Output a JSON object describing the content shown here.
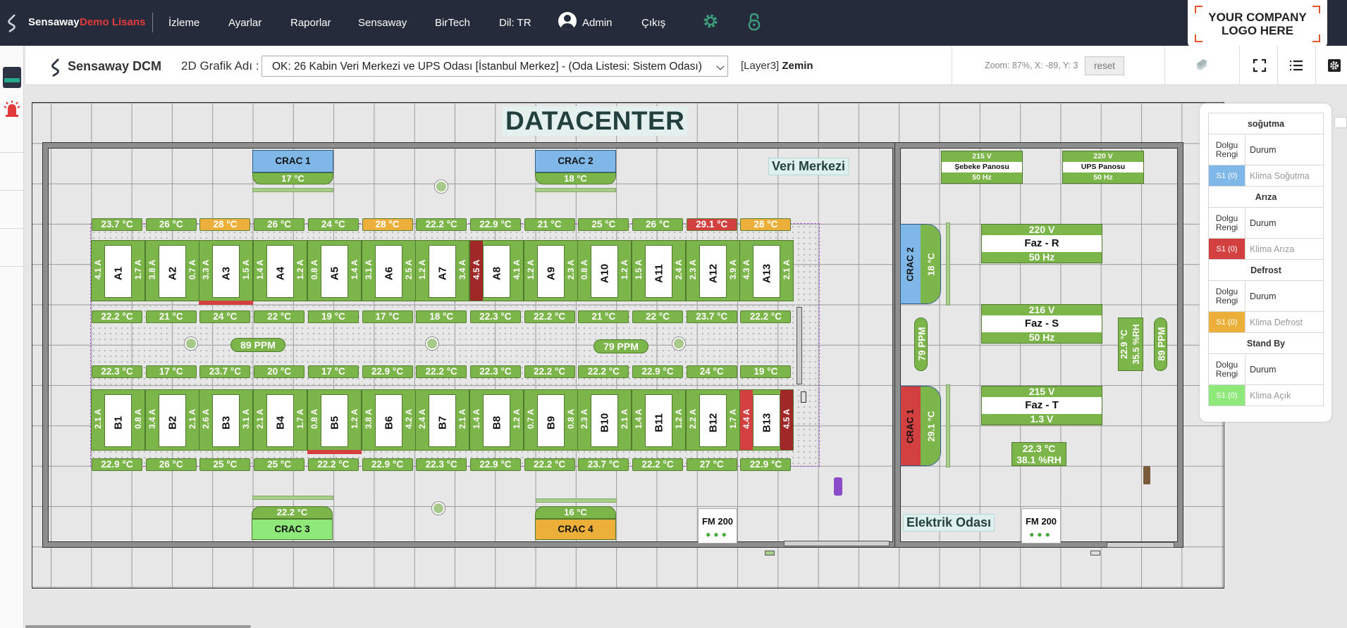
{
  "topbar": {
    "brand": "Sensaway",
    "demo": "Demo Lisans",
    "nav": [
      "İzleme",
      "Ayarlar",
      "Raporlar",
      "Sensaway",
      "BirTech",
      "Dil: TR"
    ],
    "user": "Admin",
    "logout": "Çıkış",
    "company_logo_line1": "YOUR COMPANY",
    "company_logo_line2": "LOGO HERE"
  },
  "toolbar": {
    "app_title": "Sensaway DCM",
    "graphic_label": "2D Grafik Adı :",
    "room_select": "OK: 26 Kabin Veri Merkezi ve UPS Odası [İstanbul Merkez] - (Oda Listesi: Sistem Odası)",
    "layer_prefix": "[Layer3]",
    "layer_name": "Zemin",
    "zoom_text": "Zoom: 87%, X: -89, Y: 3",
    "reset": "reset"
  },
  "floor": {
    "title": "DATACENTER",
    "room1_label": "Veri Merkezi",
    "room2_label": "Elektrik Odası",
    "top_temps": [
      [
        "23.7 °C",
        "g"
      ],
      [
        "26 °C",
        "g"
      ],
      [
        "28 °C",
        "y"
      ],
      [
        "26 °C",
        "g"
      ],
      [
        "24 °C",
        "g"
      ],
      [
        "28 °C",
        "y"
      ],
      [
        "22.2 °C",
        "g"
      ],
      [
        "22.9 °C",
        "g"
      ],
      [
        "21 °C",
        "g"
      ],
      [
        "25 °C",
        "g"
      ],
      [
        "26 °C",
        "g"
      ],
      [
        "29.1 °C",
        "r"
      ],
      [
        "28 °C",
        "y"
      ]
    ],
    "row_a": [
      {
        "name": "A1",
        "l": "4.1 A",
        "r": "1.7 A"
      },
      {
        "name": "A2",
        "l": "3.8 A",
        "r": "0.7 A"
      },
      {
        "name": "A3",
        "l": "3.3 A",
        "r": "1.5 A"
      },
      {
        "name": "A4",
        "l": "1.4 A",
        "r": "1.2 A"
      },
      {
        "name": "A5",
        "l": "0.8 A",
        "r": "1.4 A"
      },
      {
        "name": "A6",
        "l": "3.1 A",
        "r": "2.5 A"
      },
      {
        "name": "A7",
        "l": "1.2 A",
        "r": "3.4 A"
      },
      {
        "name": "A8",
        "l": "4.5 A",
        "r": "4.1 A",
        "ld": true
      },
      {
        "name": "A9",
        "l": "1.2 A",
        "r": "2.3 A"
      },
      {
        "name": "A10",
        "l": "0.8 A",
        "r": "1.2 A"
      },
      {
        "name": "A11",
        "l": "1.5 A",
        "r": "2.4 A"
      },
      {
        "name": "A12",
        "l": "2.3 A",
        "r": "3.9 A"
      },
      {
        "name": "A13",
        "l": "4.3 A",
        "r": "2.1 A"
      }
    ],
    "mid_a_temps": [
      "22.2 °C",
      "21 °C",
      "24 °C",
      "22 °C",
      "19 °C",
      "17 °C",
      "18 °C",
      "22.3 °C",
      "22.2 °C",
      "21 °C",
      "22 °C",
      "23.7 °C",
      "22.2 °C"
    ],
    "mid_b_temps": [
      "22.3 °C",
      "17 °C",
      "23.7 °C",
      "20 °C",
      "17 °C",
      "22.9 °C",
      "22.2 °C",
      "22.3 °C",
      "22.2 °C",
      "22.2 °C",
      "22.9 °C",
      "24 °C",
      "19 °C"
    ],
    "row_b": [
      {
        "name": "B1",
        "l": "2.1 A",
        "r": "0.8 A"
      },
      {
        "name": "B2",
        "l": "3.4 A",
        "r": "2.1 A"
      },
      {
        "name": "B3",
        "l": "2.6 A",
        "r": "3.1 A"
      },
      {
        "name": "B4",
        "l": "2.1 A",
        "r": "1.7 A"
      },
      {
        "name": "B5",
        "l": "0.8 A",
        "r": "1.2 A"
      },
      {
        "name": "B6",
        "l": "3.8 A",
        "r": "4.2 A"
      },
      {
        "name": "B7",
        "l": "2.4 A",
        "r": "2.1 A"
      },
      {
        "name": "B8",
        "l": "1.4 A",
        "r": "1.2 A"
      },
      {
        "name": "B9",
        "l": "0.7 A",
        "r": "0.8 A"
      },
      {
        "name": "B10",
        "l": "2.3 A",
        "r": "2.1 A"
      },
      {
        "name": "B11",
        "l": "1.4 A",
        "r": "1.2 A"
      },
      {
        "name": "B12",
        "l": "2.2 A",
        "r": "1.7 A"
      },
      {
        "name": "B13",
        "l": "4.4 A",
        "r": "4.5 A",
        "lr": true,
        "rd": true
      }
    ],
    "bottom_temps": [
      "22.9 °C",
      "26 °C",
      "25 °C",
      "25 °C",
      "22.2 °C",
      "22.9 °C",
      "22.3 °C",
      "22.9 °C",
      "22.2 °C",
      "23.7 °C",
      "22.2 °C",
      "27 °C",
      "22.9 °C"
    ],
    "ppm_left": "89 PPM",
    "ppm_right": "79 PPM",
    "crac1": {
      "name": "CRAC 1",
      "temp": "17 °C"
    },
    "crac2": {
      "name": "CRAC 2",
      "temp": "18 °C"
    },
    "crac3": {
      "name": "CRAC 3",
      "temp": "22.2 °C"
    },
    "crac4": {
      "name": "CRAC 4",
      "temp": "16 °C"
    },
    "fm200": "FM 200",
    "elec": {
      "sebeke": {
        "v": "215 V",
        "name": "Şebeke Panosu",
        "hz": "50 Hz"
      },
      "ups": {
        "v": "220 V",
        "name": "UPS Panosu",
        "hz": "50 Hz"
      },
      "crac_e2": {
        "name": "CRAC 2",
        "temp": "18 °C"
      },
      "crac_e1": {
        "name": "CRAC 1",
        "temp": "29.1 °C"
      },
      "ppm_left": "79 PPM",
      "ppm_right": "89 PPM",
      "hum_t": "22.9 °C",
      "hum_h": "35.5 %RH",
      "fazR": {
        "v": "220 V",
        "n": "Faz - R",
        "hz": "50 Hz"
      },
      "fazS": {
        "v": "216 V",
        "n": "Faz - S",
        "hz": "50 Hz"
      },
      "fazT": {
        "v": "215 V",
        "n": "Faz - T",
        "hz": "1.3 V"
      },
      "th_t": "22.3 °C",
      "th_h": "38.1 %RH"
    }
  },
  "legend": {
    "col_color": "Dolgu Rengi",
    "col_state": "Durum",
    "groups": [
      {
        "title": "soğutma",
        "sw": "S1 (0)",
        "desc": "Klima Soğutma",
        "color": "#7fb8e8"
      },
      {
        "title": "Arıza",
        "sw": "S1 (0)",
        "desc": "Klima Arıza",
        "color": "#d24040"
      },
      {
        "title": "Defrost",
        "sw": "S1 (0)",
        "desc": "Klima Defrost",
        "color": "#ecb03a"
      },
      {
        "title": "Stand By",
        "sw": "S1 (0)",
        "desc": "Klima Açık",
        "color": "#8fe87a"
      }
    ]
  }
}
